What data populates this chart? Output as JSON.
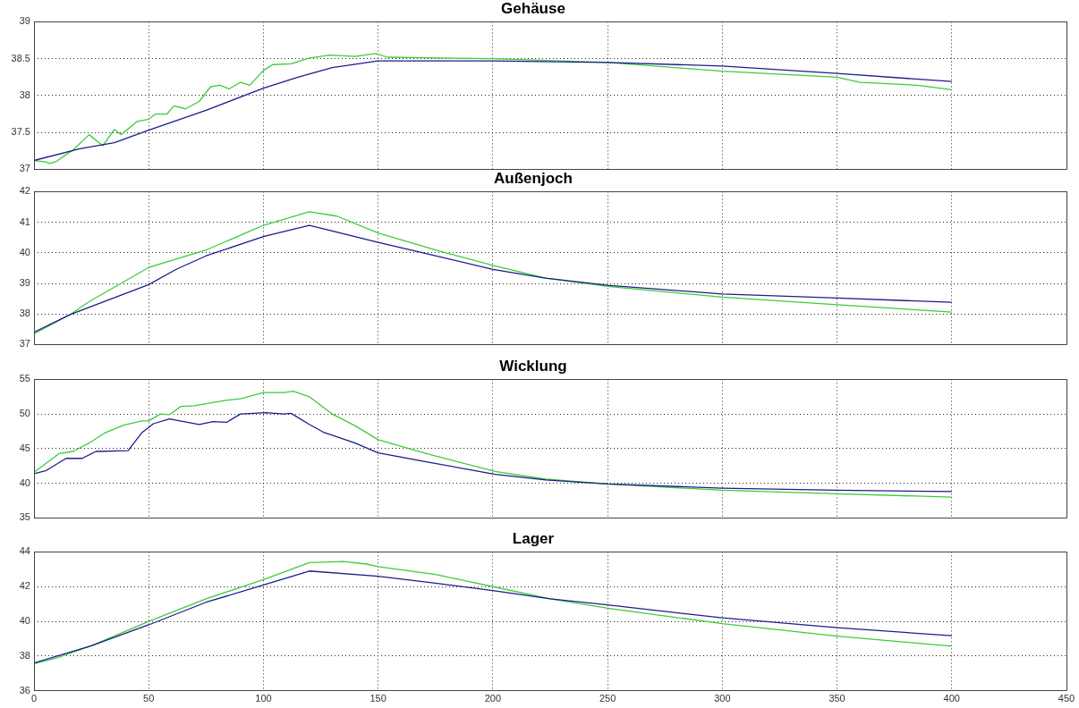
{
  "chart_data": [
    {
      "type": "line",
      "title": "Gehäuse",
      "xlim": [
        0,
        450
      ],
      "xticks": [
        0,
        50,
        100,
        150,
        200,
        250,
        300,
        350,
        400,
        450
      ],
      "ylim": [
        37,
        39
      ],
      "yticks": [
        37,
        37.5,
        38,
        38.5,
        39
      ],
      "grid": true,
      "tick_labels": "y",
      "marker": "none",
      "line_style": "solid",
      "series": [
        {
          "color": "#1c1c8c",
          "x": [
            0,
            20,
            35,
            50,
            75,
            100,
            115,
            130,
            150,
            200,
            250,
            300,
            350,
            400
          ],
          "values": [
            37.12,
            37.28,
            37.36,
            37.53,
            37.8,
            38.1,
            38.25,
            38.38,
            38.47,
            38.47,
            38.45,
            38.4,
            38.3,
            38.19
          ]
        },
        {
          "color": "#3ccc3c",
          "x": [
            0,
            5,
            7,
            10,
            14,
            17,
            24,
            30,
            35,
            38,
            45,
            50,
            53,
            58,
            61,
            66,
            72,
            77,
            81,
            85,
            90,
            94,
            100,
            104,
            112,
            120,
            129,
            140,
            149,
            154,
            200,
            250,
            300,
            350,
            360,
            385,
            400
          ],
          "values": [
            37.12,
            37.1,
            37.08,
            37.11,
            37.2,
            37.26,
            37.47,
            37.32,
            37.54,
            37.47,
            37.65,
            37.68,
            37.75,
            37.75,
            37.86,
            37.82,
            37.92,
            38.12,
            38.14,
            38.09,
            38.18,
            38.14,
            38.34,
            38.42,
            38.43,
            38.51,
            38.55,
            38.53,
            38.57,
            38.52,
            38.5,
            38.45,
            38.33,
            38.25,
            38.18,
            38.14,
            38.08
          ]
        }
      ]
    },
    {
      "type": "line",
      "title": "Außenjoch",
      "xlim": [
        0,
        450
      ],
      "xticks": [
        0,
        50,
        100,
        150,
        200,
        250,
        300,
        350,
        400,
        450
      ],
      "ylim": [
        37,
        42
      ],
      "yticks": [
        37,
        38,
        39,
        40,
        41,
        42
      ],
      "grid": true,
      "tick_labels": "y",
      "marker": "none",
      "line_style": "solid",
      "series": [
        {
          "color": "#1c1c8c",
          "x": [
            0,
            16,
            50,
            62,
            75,
            100,
            120,
            150,
            175,
            200,
            223,
            250,
            300,
            350,
            400
          ],
          "values": [
            37.4,
            37.99,
            38.96,
            39.46,
            39.9,
            40.53,
            40.9,
            40.34,
            39.9,
            39.46,
            39.17,
            38.94,
            38.65,
            38.52,
            38.38
          ]
        },
        {
          "color": "#3ccc3c",
          "x": [
            0,
            16,
            24,
            50,
            75,
            100,
            120,
            132,
            150,
            175,
            200,
            223,
            250,
            300,
            350,
            400
          ],
          "values": [
            37.35,
            37.99,
            38.4,
            39.52,
            40.09,
            40.9,
            41.34,
            41.2,
            40.65,
            40.09,
            39.59,
            39.17,
            38.9,
            38.55,
            38.3,
            38.06
          ]
        }
      ]
    },
    {
      "type": "line",
      "title": "Wicklung",
      "xlim": [
        0,
        450
      ],
      "xticks": [
        0,
        50,
        100,
        150,
        200,
        250,
        300,
        350,
        400,
        450
      ],
      "ylim": [
        35,
        55
      ],
      "yticks": [
        35,
        40,
        45,
        50,
        55
      ],
      "grid": true,
      "tick_labels": "y",
      "marker": "none",
      "line_style": "solid",
      "series": [
        {
          "color": "#1c1c8c",
          "x": [
            0,
            5,
            14,
            21,
            27,
            41,
            47,
            52,
            59,
            72,
            78,
            84,
            90,
            101,
            109,
            112,
            120,
            126,
            140,
            150,
            171,
            201,
            223,
            250,
            300,
            350,
            400
          ],
          "values": [
            41.4,
            41.8,
            43.6,
            43.6,
            44.6,
            44.7,
            47.3,
            48.6,
            49.3,
            48.5,
            48.9,
            48.8,
            50,
            50.2,
            50,
            50.1,
            48.5,
            47.4,
            45.8,
            44.4,
            43.1,
            41.3,
            40.5,
            39.9,
            39.3,
            39.0,
            38.8
          ]
        },
        {
          "color": "#3ccc3c",
          "x": [
            0,
            11,
            17,
            24,
            31,
            39,
            47,
            50,
            55,
            59,
            64,
            70,
            84,
            90,
            100,
            109,
            113,
            120,
            130,
            140,
            150,
            171,
            201,
            223,
            250,
            300,
            350,
            400
          ],
          "values": [
            41.6,
            44.3,
            44.6,
            45.8,
            47.3,
            48.4,
            49.0,
            49.0,
            50,
            49.9,
            51.1,
            51.2,
            52,
            52.2,
            53.1,
            53.1,
            53.3,
            52.5,
            50,
            48.3,
            46.3,
            44.3,
            41.7,
            40.6,
            39.9,
            39.0,
            38.5,
            38.0
          ]
        }
      ]
    },
    {
      "type": "line",
      "title": "Lager",
      "xlim": [
        0,
        450
      ],
      "xticks": [
        0,
        50,
        100,
        150,
        200,
        250,
        300,
        350,
        400,
        450
      ],
      "ylim": [
        36,
        44
      ],
      "yticks": [
        36,
        38,
        40,
        42,
        44
      ],
      "grid": true,
      "marker": "none",
      "line_style": "solid",
      "series": [
        {
          "color": "#1c1c8c",
          "x": [
            0,
            25,
            50,
            75,
            100,
            120,
            150,
            175,
            200,
            225,
            250,
            300,
            350,
            400
          ],
          "values": [
            37.6,
            38.6,
            39.8,
            41.1,
            42.1,
            42.9,
            42.6,
            42.2,
            41.77,
            41.3,
            40.95,
            40.2,
            39.64,
            39.17
          ]
        },
        {
          "color": "#3ccc3c",
          "x": [
            0,
            10,
            25,
            50,
            75,
            100,
            120,
            135,
            145,
            150,
            175,
            200,
            225,
            250,
            300,
            350,
            400
          ],
          "values": [
            37.55,
            37.9,
            38.6,
            40.0,
            41.3,
            42.4,
            43.38,
            43.45,
            43.3,
            43.15,
            42.7,
            42.0,
            41.3,
            40.76,
            39.87,
            39.15,
            38.57
          ]
        }
      ]
    }
  ]
}
